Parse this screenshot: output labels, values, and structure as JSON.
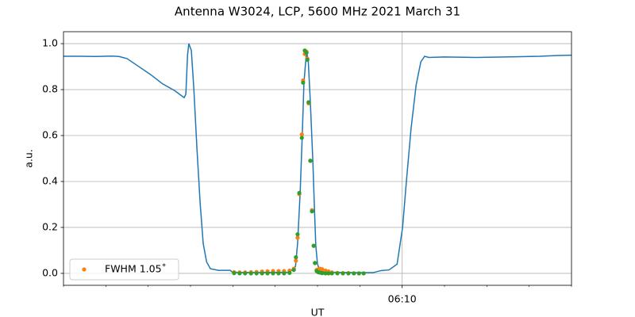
{
  "chart_data": {
    "type": "line",
    "title": "Antenna W3024, LCP, 5600 MHz 2021 March 31",
    "xlabel": "UT",
    "ylabel": "a.u.",
    "xlim": [
      362,
      374
    ],
    "xticks": [
      {
        "value": 370,
        "label": "06:10"
      }
    ],
    "xminor": [
      362,
      363,
      364,
      365,
      366,
      367,
      368,
      369,
      371,
      372,
      373,
      374
    ],
    "ylim": [
      -0.052,
      1.052
    ],
    "yticks": [
      {
        "value": 0,
        "label": "0.0"
      },
      {
        "value": 0.2,
        "label": "0.2"
      },
      {
        "value": 0.4,
        "label": "0.4"
      },
      {
        "value": 0.6,
        "label": "0.6"
      },
      {
        "value": 0.8,
        "label": "0.8"
      },
      {
        "value": 1,
        "label": "1.0"
      }
    ],
    "grid": true,
    "legend": "lower left",
    "series": [
      {
        "type": "line",
        "color": "#1f77b4",
        "x": [
          362.0,
          362.38,
          362.75,
          363.13,
          363.31,
          363.5,
          363.78,
          364.06,
          364.34,
          364.63,
          364.85,
          364.89,
          364.93,
          364.96,
          365.02,
          365.08,
          365.15,
          365.23,
          365.3,
          365.38,
          365.47,
          365.66,
          365.94,
          365.99,
          366.13,
          367.06,
          367.34,
          367.48,
          367.53,
          367.59,
          367.64,
          367.68,
          367.74,
          367.78,
          367.83,
          367.89,
          367.93,
          367.96,
          368.0,
          368.06,
          368.19,
          368.94,
          369.31,
          369.5,
          369.69,
          369.88,
          370.01,
          370.1,
          370.21,
          370.33,
          370.44,
          370.53,
          370.63,
          371.0,
          371.75,
          372.69,
          373.25,
          373.63,
          374.0
        ],
        "values": [
          0.945,
          0.945,
          0.944,
          0.946,
          0.944,
          0.935,
          0.9,
          0.865,
          0.825,
          0.795,
          0.765,
          0.78,
          0.95,
          1.0,
          0.97,
          0.8,
          0.55,
          0.3,
          0.13,
          0.05,
          0.02,
          0.013,
          0.013,
          0.005,
          0.004,
          0.004,
          0.005,
          0.03,
          0.13,
          0.35,
          0.6,
          0.83,
          0.965,
          0.93,
          0.75,
          0.49,
          0.27,
          0.12,
          0.04,
          0.01,
          0.005,
          0.003,
          0.003,
          0.012,
          0.015,
          0.04,
          0.2,
          0.4,
          0.63,
          0.82,
          0.92,
          0.945,
          0.94,
          0.942,
          0.94,
          0.943,
          0.945,
          0.948,
          0.95
        ]
      },
      {
        "type": "scatter",
        "name": "FWHM 1.05˚",
        "color": "#ff7f0e",
        "x": [
          366.03,
          366.16,
          366.29,
          366.43,
          366.56,
          366.69,
          366.82,
          366.95,
          367.08,
          367.21,
          367.34,
          367.44,
          367.49,
          367.53,
          367.57,
          367.63,
          367.66,
          367.7,
          367.74,
          367.76,
          367.79,
          367.83,
          367.87,
          367.91,
          367.94,
          367.98,
          368.02,
          368.06,
          368.11,
          368.19,
          368.26,
          368.34,
          368.47,
          368.6,
          368.73,
          368.86,
          368.98,
          369.09
        ],
        "values": [
          0.005,
          0.004,
          0.004,
          0.005,
          0.006,
          0.008,
          0.009,
          0.01,
          0.01,
          0.01,
          0.012,
          0.02,
          0.055,
          0.155,
          0.345,
          0.605,
          0.84,
          0.955,
          0.965,
          0.935,
          0.74,
          0.49,
          0.275,
          0.12,
          0.045,
          0.015,
          0.018,
          0.02,
          0.018,
          0.012,
          0.008,
          0.004,
          0.002,
          0.001,
          0.001,
          0,
          0,
          0
        ]
      },
      {
        "type": "scatter",
        "color": "#2ca02c",
        "x": [
          366.03,
          366.16,
          366.29,
          366.43,
          366.56,
          366.69,
          366.82,
          366.95,
          367.08,
          367.21,
          367.34,
          367.44,
          367.49,
          367.53,
          367.57,
          367.63,
          367.66,
          367.7,
          367.74,
          367.76,
          367.79,
          367.83,
          367.87,
          367.91,
          367.94,
          367.98,
          368.02,
          368.06,
          368.11,
          368.19,
          368.26,
          368.34,
          368.47,
          368.6,
          368.73,
          368.86,
          368.98,
          369.09
        ],
        "values": [
          0.001,
          0,
          0,
          0,
          0,
          0,
          0,
          0,
          0,
          0,
          0.002,
          0.015,
          0.07,
          0.17,
          0.35,
          0.59,
          0.83,
          0.97,
          0.96,
          0.93,
          0.745,
          0.49,
          0.27,
          0.12,
          0.045,
          0.01,
          0.005,
          0.003,
          0.001,
          0,
          0,
          0,
          0,
          0,
          0,
          0,
          0,
          0
        ]
      }
    ]
  }
}
